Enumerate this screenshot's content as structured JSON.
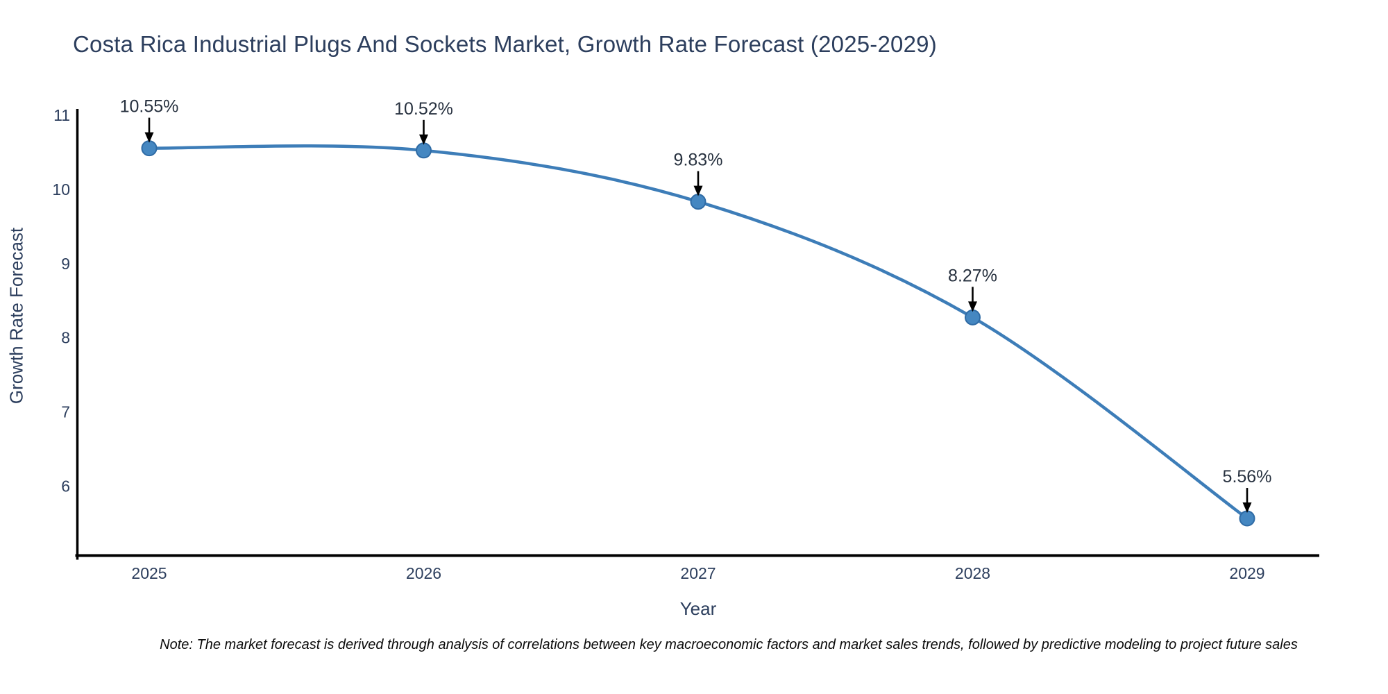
{
  "figure": {
    "note": "Note: The market forecast is derived through analysis of correlations between key macroeconomic factors and market sales trends, followed by predictive modeling to project future sales"
  },
  "chart_data": {
    "type": "line",
    "line_shape": "spline",
    "title": "Costa Rica Industrial Plugs And Sockets Market, Growth Rate Forecast (2025-2029)",
    "xlabel": "Year",
    "ylabel": "Growth Rate Forecast",
    "categories": [
      "2025",
      "2026",
      "2027",
      "2028",
      "2029"
    ],
    "values": [
      10.55,
      10.52,
      9.83,
      8.27,
      5.56
    ],
    "point_labels": [
      "10.55%",
      "10.52%",
      "9.83%",
      "8.27%",
      "5.56%"
    ],
    "yticks": [
      6,
      7,
      8,
      9,
      10,
      11
    ],
    "ylim": [
      5.06,
      11.07
    ],
    "grid": false,
    "legend": "none",
    "annotation_style": "label-above-with-down-arrow",
    "colors": {
      "line": "#3d7db8",
      "marker_fill": "#4587c1",
      "marker_edge": "#2f6ba5",
      "axis": "#000000",
      "tick_text": "#2c3e5d",
      "annotation_text": "#27313f",
      "arrow": "#000000",
      "background": "#ffffff"
    }
  }
}
